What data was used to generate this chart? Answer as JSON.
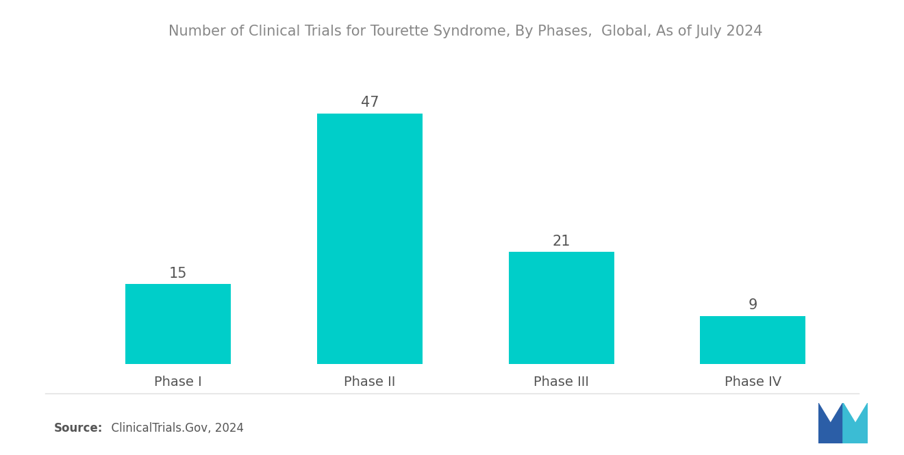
{
  "title": "Number of Clinical Trials for Tourette Syndrome, By Phases,  Global, As of July 2024",
  "categories": [
    "Phase I",
    "Phase II",
    "Phase III",
    "Phase IV"
  ],
  "values": [
    15,
    47,
    21,
    9
  ],
  "bar_color": "#00CEC9",
  "value_label_color": "#555555",
  "category_label_color": "#555555",
  "title_color": "#888888",
  "source_bold": "Source:",
  "source_normal": "  ClinicalTrials.Gov, 2024",
  "source_color": "#555555",
  "background_color": "#ffffff",
  "bar_width": 0.55,
  "ylim": [
    0,
    58
  ],
  "title_fontsize": 15,
  "label_fontsize": 14,
  "value_fontsize": 15,
  "source_fontsize": 12,
  "logo_dark_color": "#2B5EA7",
  "logo_teal_color": "#3BBCD4"
}
